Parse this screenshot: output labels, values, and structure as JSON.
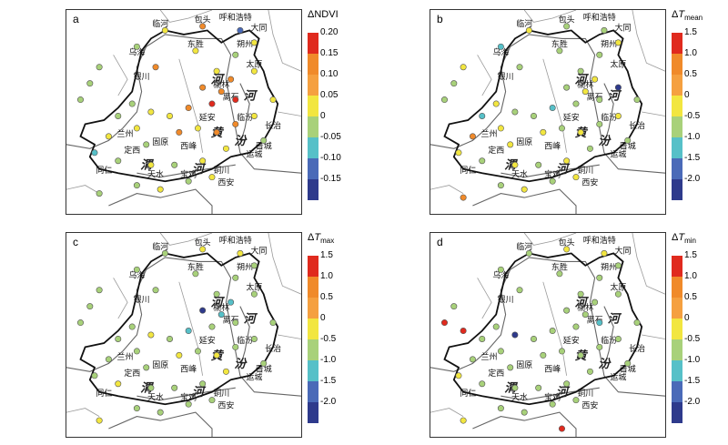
{
  "places": [
    "临河",
    "包头",
    "呼和浩特",
    "大同",
    "乌海",
    "东胜",
    "朔州",
    "银川",
    "榆林",
    "太原",
    "离石",
    "延安",
    "临汾",
    "长治",
    "晋城",
    "兰州",
    "固原",
    "西峰",
    "运城",
    "定西",
    "铜川",
    "同仁",
    "天水",
    "宝鸡",
    "西安"
  ],
  "rivers": [
    "黄",
    "河",
    "汾",
    "河",
    "渭",
    "河"
  ],
  "colors": {
    "c1": "#2e3a8c",
    "c2": "#4a6ab8",
    "c3": "#56c0c8",
    "c4": "#a8d17a",
    "c5": "#f2e640",
    "c6": "#f08a2a",
    "c7": "#e02a1e",
    "c_orange_light": "#f5a040"
  },
  "panels": [
    {
      "label": "a",
      "legend_title": "ΔNDVI",
      "legend_sub": "",
      "ticks": [
        "0.20",
        "0.15",
        "0.10",
        "0.05",
        "0",
        "-0.05",
        "-0.10",
        "-0.15"
      ],
      "stations": [
        {
          "lon": 0.42,
          "lat": 0.1,
          "v": "c5"
        },
        {
          "lon": 0.58,
          "lat": 0.08,
          "v": "c6"
        },
        {
          "lon": 0.74,
          "lat": 0.1,
          "v": "c2"
        },
        {
          "lon": 0.8,
          "lat": 0.16,
          "v": "c5"
        },
        {
          "lon": 0.3,
          "lat": 0.18,
          "v": "c4"
        },
        {
          "lon": 0.55,
          "lat": 0.2,
          "v": "c5"
        },
        {
          "lon": 0.72,
          "lat": 0.22,
          "v": "c4"
        },
        {
          "lon": 0.38,
          "lat": 0.28,
          "v": "c6"
        },
        {
          "lon": 0.64,
          "lat": 0.3,
          "v": "c5"
        },
        {
          "lon": 0.7,
          "lat": 0.34,
          "v": "c6"
        },
        {
          "lon": 0.8,
          "lat": 0.3,
          "v": "c5"
        },
        {
          "lon": 0.58,
          "lat": 0.38,
          "v": "c6"
        },
        {
          "lon": 0.66,
          "lat": 0.4,
          "v": "c6"
        },
        {
          "lon": 0.62,
          "lat": 0.46,
          "v": "c7"
        },
        {
          "lon": 0.72,
          "lat": 0.44,
          "v": "c7"
        },
        {
          "lon": 0.52,
          "lat": 0.48,
          "v": "c6"
        },
        {
          "lon": 0.44,
          "lat": 0.52,
          "v": "c5"
        },
        {
          "lon": 0.36,
          "lat": 0.5,
          "v": "c5"
        },
        {
          "lon": 0.28,
          "lat": 0.46,
          "v": "c4"
        },
        {
          "lon": 0.22,
          "lat": 0.52,
          "v": "c4"
        },
        {
          "lon": 0.1,
          "lat": 0.36,
          "v": "c4"
        },
        {
          "lon": 0.06,
          "lat": 0.44,
          "v": "c4"
        },
        {
          "lon": 0.14,
          "lat": 0.28,
          "v": "c4"
        },
        {
          "lon": 0.3,
          "lat": 0.58,
          "v": "c5"
        },
        {
          "lon": 0.18,
          "lat": 0.62,
          "v": "c5"
        },
        {
          "lon": 0.34,
          "lat": 0.66,
          "v": "c4"
        },
        {
          "lon": 0.48,
          "lat": 0.6,
          "v": "c6"
        },
        {
          "lon": 0.56,
          "lat": 0.58,
          "v": "c5"
        },
        {
          "lon": 0.64,
          "lat": 0.6,
          "v": "c6"
        },
        {
          "lon": 0.72,
          "lat": 0.56,
          "v": "c6"
        },
        {
          "lon": 0.8,
          "lat": 0.52,
          "v": "c5"
        },
        {
          "lon": 0.88,
          "lat": 0.44,
          "v": "c5"
        },
        {
          "lon": 0.84,
          "lat": 0.64,
          "v": "c4"
        },
        {
          "lon": 0.68,
          "lat": 0.68,
          "v": "c5"
        },
        {
          "lon": 0.58,
          "lat": 0.74,
          "v": "c5"
        },
        {
          "lon": 0.46,
          "lat": 0.76,
          "v": "c4"
        },
        {
          "lon": 0.36,
          "lat": 0.76,
          "v": "c5"
        },
        {
          "lon": 0.22,
          "lat": 0.74,
          "v": "c4"
        },
        {
          "lon": 0.12,
          "lat": 0.7,
          "v": "c3"
        },
        {
          "lon": 0.3,
          "lat": 0.86,
          "v": "c4"
        },
        {
          "lon": 0.4,
          "lat": 0.88,
          "v": "c5"
        },
        {
          "lon": 0.52,
          "lat": 0.84,
          "v": "c4"
        },
        {
          "lon": 0.62,
          "lat": 0.82,
          "v": "c5"
        },
        {
          "lon": 0.14,
          "lat": 0.9,
          "v": "c4"
        }
      ]
    },
    {
      "label": "b",
      "legend_title": "ΔT",
      "legend_sub": "mean",
      "ticks": [
        "1.5",
        "1.0",
        "0.5",
        "0",
        "-0.5",
        "-1.0",
        "-1.5",
        "-2.0"
      ],
      "stations": [
        {
          "lon": 0.42,
          "lat": 0.1,
          "v": "c5"
        },
        {
          "lon": 0.58,
          "lat": 0.08,
          "v": "c4"
        },
        {
          "lon": 0.74,
          "lat": 0.1,
          "v": "c4"
        },
        {
          "lon": 0.8,
          "lat": 0.16,
          "v": "c5"
        },
        {
          "lon": 0.3,
          "lat": 0.18,
          "v": "c3"
        },
        {
          "lon": 0.55,
          "lat": 0.2,
          "v": "c4"
        },
        {
          "lon": 0.72,
          "lat": 0.22,
          "v": "c4"
        },
        {
          "lon": 0.38,
          "lat": 0.28,
          "v": "c4"
        },
        {
          "lon": 0.64,
          "lat": 0.3,
          "v": "c4"
        },
        {
          "lon": 0.7,
          "lat": 0.34,
          "v": "c5"
        },
        {
          "lon": 0.8,
          "lat": 0.38,
          "v": "c1"
        },
        {
          "lon": 0.58,
          "lat": 0.38,
          "v": "c4"
        },
        {
          "lon": 0.66,
          "lat": 0.4,
          "v": "c5"
        },
        {
          "lon": 0.62,
          "lat": 0.46,
          "v": "c4"
        },
        {
          "lon": 0.72,
          "lat": 0.44,
          "v": "c4"
        },
        {
          "lon": 0.52,
          "lat": 0.48,
          "v": "c3"
        },
        {
          "lon": 0.44,
          "lat": 0.52,
          "v": "c4"
        },
        {
          "lon": 0.36,
          "lat": 0.5,
          "v": "c4"
        },
        {
          "lon": 0.28,
          "lat": 0.46,
          "v": "c5"
        },
        {
          "lon": 0.22,
          "lat": 0.52,
          "v": "c3"
        },
        {
          "lon": 0.1,
          "lat": 0.36,
          "v": "c4"
        },
        {
          "lon": 0.06,
          "lat": 0.44,
          "v": "c4"
        },
        {
          "lon": 0.14,
          "lat": 0.28,
          "v": "c5"
        },
        {
          "lon": 0.3,
          "lat": 0.58,
          "v": "c5"
        },
        {
          "lon": 0.18,
          "lat": 0.62,
          "v": "c6"
        },
        {
          "lon": 0.34,
          "lat": 0.66,
          "v": "c5"
        },
        {
          "lon": 0.48,
          "lat": 0.6,
          "v": "c5"
        },
        {
          "lon": 0.56,
          "lat": 0.58,
          "v": "c4"
        },
        {
          "lon": 0.64,
          "lat": 0.6,
          "v": "c5"
        },
        {
          "lon": 0.72,
          "lat": 0.56,
          "v": "c4"
        },
        {
          "lon": 0.8,
          "lat": 0.52,
          "v": "c5"
        },
        {
          "lon": 0.88,
          "lat": 0.44,
          "v": "c4"
        },
        {
          "lon": 0.84,
          "lat": 0.64,
          "v": "c4"
        },
        {
          "lon": 0.68,
          "lat": 0.68,
          "v": "c4"
        },
        {
          "lon": 0.58,
          "lat": 0.74,
          "v": "c5"
        },
        {
          "lon": 0.46,
          "lat": 0.76,
          "v": "c4"
        },
        {
          "lon": 0.36,
          "lat": 0.76,
          "v": "c5"
        },
        {
          "lon": 0.22,
          "lat": 0.74,
          "v": "c4"
        },
        {
          "lon": 0.12,
          "lat": 0.7,
          "v": "c5"
        },
        {
          "lon": 0.3,
          "lat": 0.86,
          "v": "c4"
        },
        {
          "lon": 0.4,
          "lat": 0.88,
          "v": "c5"
        },
        {
          "lon": 0.52,
          "lat": 0.84,
          "v": "c4"
        },
        {
          "lon": 0.62,
          "lat": 0.82,
          "v": "c5"
        },
        {
          "lon": 0.14,
          "lat": 0.92,
          "v": "c6"
        }
      ]
    },
    {
      "label": "c",
      "legend_title": "ΔT",
      "legend_sub": "max",
      "ticks": [
        "1.5",
        "1.0",
        "0.5",
        "0",
        "-0.5",
        "-1.0",
        "-1.5",
        "-2.0"
      ],
      "stations": [
        {
          "lon": 0.42,
          "lat": 0.1,
          "v": "c4"
        },
        {
          "lon": 0.58,
          "lat": 0.08,
          "v": "c5"
        },
        {
          "lon": 0.74,
          "lat": 0.1,
          "v": "c5"
        },
        {
          "lon": 0.8,
          "lat": 0.16,
          "v": "c4"
        },
        {
          "lon": 0.3,
          "lat": 0.18,
          "v": "c4"
        },
        {
          "lon": 0.55,
          "lat": 0.2,
          "v": "c4"
        },
        {
          "lon": 0.72,
          "lat": 0.22,
          "v": "c4"
        },
        {
          "lon": 0.38,
          "lat": 0.28,
          "v": "c4"
        },
        {
          "lon": 0.64,
          "lat": 0.3,
          "v": "c4"
        },
        {
          "lon": 0.7,
          "lat": 0.34,
          "v": "c3"
        },
        {
          "lon": 0.8,
          "lat": 0.3,
          "v": "c4"
        },
        {
          "lon": 0.58,
          "lat": 0.38,
          "v": "c1"
        },
        {
          "lon": 0.66,
          "lat": 0.4,
          "v": "c3"
        },
        {
          "lon": 0.62,
          "lat": 0.46,
          "v": "c4"
        },
        {
          "lon": 0.72,
          "lat": 0.44,
          "v": "c4"
        },
        {
          "lon": 0.52,
          "lat": 0.48,
          "v": "c3"
        },
        {
          "lon": 0.44,
          "lat": 0.52,
          "v": "c4"
        },
        {
          "lon": 0.36,
          "lat": 0.5,
          "v": "c5"
        },
        {
          "lon": 0.28,
          "lat": 0.46,
          "v": "c4"
        },
        {
          "lon": 0.22,
          "lat": 0.52,
          "v": "c4"
        },
        {
          "lon": 0.1,
          "lat": 0.36,
          "v": "c4"
        },
        {
          "lon": 0.06,
          "lat": 0.44,
          "v": "c4"
        },
        {
          "lon": 0.14,
          "lat": 0.28,
          "v": "c4"
        },
        {
          "lon": 0.3,
          "lat": 0.58,
          "v": "c4"
        },
        {
          "lon": 0.18,
          "lat": 0.62,
          "v": "c4"
        },
        {
          "lon": 0.34,
          "lat": 0.66,
          "v": "c4"
        },
        {
          "lon": 0.48,
          "lat": 0.6,
          "v": "c5"
        },
        {
          "lon": 0.56,
          "lat": 0.58,
          "v": "c4"
        },
        {
          "lon": 0.64,
          "lat": 0.6,
          "v": "c5"
        },
        {
          "lon": 0.72,
          "lat": 0.56,
          "v": "c4"
        },
        {
          "lon": 0.8,
          "lat": 0.52,
          "v": "c4"
        },
        {
          "lon": 0.88,
          "lat": 0.44,
          "v": "c4"
        },
        {
          "lon": 0.84,
          "lat": 0.64,
          "v": "c4"
        },
        {
          "lon": 0.68,
          "lat": 0.68,
          "v": "c5"
        },
        {
          "lon": 0.58,
          "lat": 0.74,
          "v": "c4"
        },
        {
          "lon": 0.46,
          "lat": 0.76,
          "v": "c4"
        },
        {
          "lon": 0.36,
          "lat": 0.76,
          "v": "c4"
        },
        {
          "lon": 0.22,
          "lat": 0.74,
          "v": "c5"
        },
        {
          "lon": 0.12,
          "lat": 0.7,
          "v": "c4"
        },
        {
          "lon": 0.3,
          "lat": 0.86,
          "v": "c4"
        },
        {
          "lon": 0.4,
          "lat": 0.88,
          "v": "c4"
        },
        {
          "lon": 0.52,
          "lat": 0.84,
          "v": "c4"
        },
        {
          "lon": 0.62,
          "lat": 0.82,
          "v": "c4"
        },
        {
          "lon": 0.14,
          "lat": 0.92,
          "v": "c5"
        }
      ]
    },
    {
      "label": "d",
      "legend_title": "ΔT",
      "legend_sub": "min",
      "ticks": [
        "1.5",
        "1.0",
        "0.5",
        "0",
        "-0.5",
        "-1.0",
        "-1.5",
        "-2.0"
      ],
      "stations": [
        {
          "lon": 0.42,
          "lat": 0.1,
          "v": "c4"
        },
        {
          "lon": 0.58,
          "lat": 0.08,
          "v": "c5"
        },
        {
          "lon": 0.74,
          "lat": 0.1,
          "v": "c5"
        },
        {
          "lon": 0.8,
          "lat": 0.16,
          "v": "c4"
        },
        {
          "lon": 0.3,
          "lat": 0.18,
          "v": "c4"
        },
        {
          "lon": 0.55,
          "lat": 0.2,
          "v": "c4"
        },
        {
          "lon": 0.72,
          "lat": 0.22,
          "v": "c4"
        },
        {
          "lon": 0.38,
          "lat": 0.28,
          "v": "c4"
        },
        {
          "lon": 0.64,
          "lat": 0.3,
          "v": "c4"
        },
        {
          "lon": 0.7,
          "lat": 0.34,
          "v": "c4"
        },
        {
          "lon": 0.8,
          "lat": 0.3,
          "v": "c4"
        },
        {
          "lon": 0.58,
          "lat": 0.38,
          "v": "c4"
        },
        {
          "lon": 0.66,
          "lat": 0.4,
          "v": "c4"
        },
        {
          "lon": 0.62,
          "lat": 0.46,
          "v": "c4"
        },
        {
          "lon": 0.72,
          "lat": 0.44,
          "v": "c3"
        },
        {
          "lon": 0.52,
          "lat": 0.48,
          "v": "c4"
        },
        {
          "lon": 0.44,
          "lat": 0.52,
          "v": "c4"
        },
        {
          "lon": 0.36,
          "lat": 0.5,
          "v": "c1"
        },
        {
          "lon": 0.28,
          "lat": 0.46,
          "v": "c4"
        },
        {
          "lon": 0.22,
          "lat": 0.52,
          "v": "c4"
        },
        {
          "lon": 0.1,
          "lat": 0.36,
          "v": "c4"
        },
        {
          "lon": 0.06,
          "lat": 0.44,
          "v": "c7"
        },
        {
          "lon": 0.14,
          "lat": 0.48,
          "v": "c7"
        },
        {
          "lon": 0.3,
          "lat": 0.58,
          "v": "c4"
        },
        {
          "lon": 0.18,
          "lat": 0.62,
          "v": "c4"
        },
        {
          "lon": 0.34,
          "lat": 0.66,
          "v": "c4"
        },
        {
          "lon": 0.48,
          "lat": 0.6,
          "v": "c4"
        },
        {
          "lon": 0.56,
          "lat": 0.58,
          "v": "c4"
        },
        {
          "lon": 0.64,
          "lat": 0.6,
          "v": "c4"
        },
        {
          "lon": 0.72,
          "lat": 0.56,
          "v": "c4"
        },
        {
          "lon": 0.8,
          "lat": 0.52,
          "v": "c4"
        },
        {
          "lon": 0.88,
          "lat": 0.44,
          "v": "c4"
        },
        {
          "lon": 0.84,
          "lat": 0.64,
          "v": "c4"
        },
        {
          "lon": 0.68,
          "lat": 0.68,
          "v": "c4"
        },
        {
          "lon": 0.58,
          "lat": 0.74,
          "v": "c4"
        },
        {
          "lon": 0.46,
          "lat": 0.76,
          "v": "c4"
        },
        {
          "lon": 0.36,
          "lat": 0.76,
          "v": "c4"
        },
        {
          "lon": 0.22,
          "lat": 0.74,
          "v": "c4"
        },
        {
          "lon": 0.12,
          "lat": 0.7,
          "v": "c5"
        },
        {
          "lon": 0.3,
          "lat": 0.86,
          "v": "c4"
        },
        {
          "lon": 0.4,
          "lat": 0.88,
          "v": "c4"
        },
        {
          "lon": 0.52,
          "lat": 0.84,
          "v": "c4"
        },
        {
          "lon": 0.62,
          "lat": 0.82,
          "v": "c4"
        },
        {
          "lon": 0.56,
          "lat": 0.96,
          "v": "c7"
        },
        {
          "lon": 0.14,
          "lat": 0.92,
          "v": "c5"
        }
      ]
    }
  ]
}
